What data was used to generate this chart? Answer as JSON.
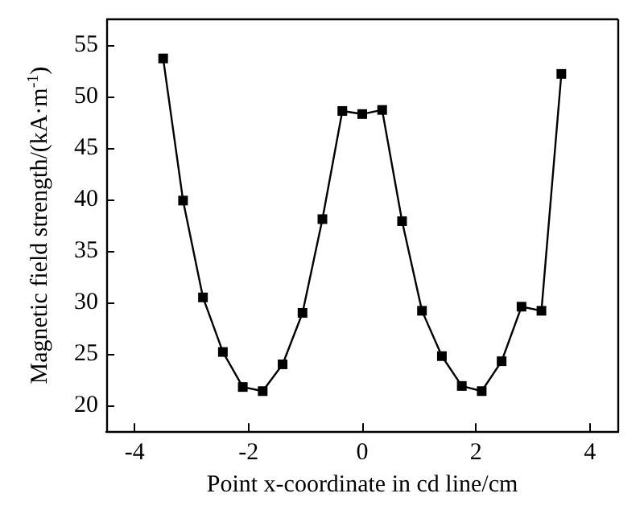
{
  "chart_data": {
    "type": "line",
    "xlabel": "Point x-coordinate in cd line/cm",
    "ylabel": "Magnetic field strength/(kA·m$^{-1}$)",
    "x": [
      -3.5,
      -3.15,
      -2.8,
      -2.45,
      -2.1,
      -1.75,
      -1.4,
      -1.05,
      -0.7,
      -0.35,
      0,
      0.35,
      0.7,
      1.05,
      1.4,
      1.75,
      2.1,
      2.45,
      2.8,
      3.15,
      3.5
    ],
    "series": [
      {
        "color": "#000000",
        "values": [
          53.7,
          39.9,
          30.5,
          25.2,
          21.8,
          21.4,
          24.0,
          29.0,
          38.1,
          48.6,
          48.3,
          48.7,
          37.9,
          29.2,
          24.8,
          21.9,
          21.4,
          24.3,
          29.6,
          29.2,
          52.2
        ]
      }
    ],
    "xlim": [
      -4.5,
      4.5
    ],
    "xticks": [
      -4,
      -2,
      0,
      2,
      4
    ],
    "ylim": [
      17.5,
      57.5
    ],
    "yticks": [
      20,
      25,
      30,
      35,
      40,
      45,
      50,
      55
    ],
    "grid": false,
    "marker": "square",
    "line_style": "solid"
  }
}
